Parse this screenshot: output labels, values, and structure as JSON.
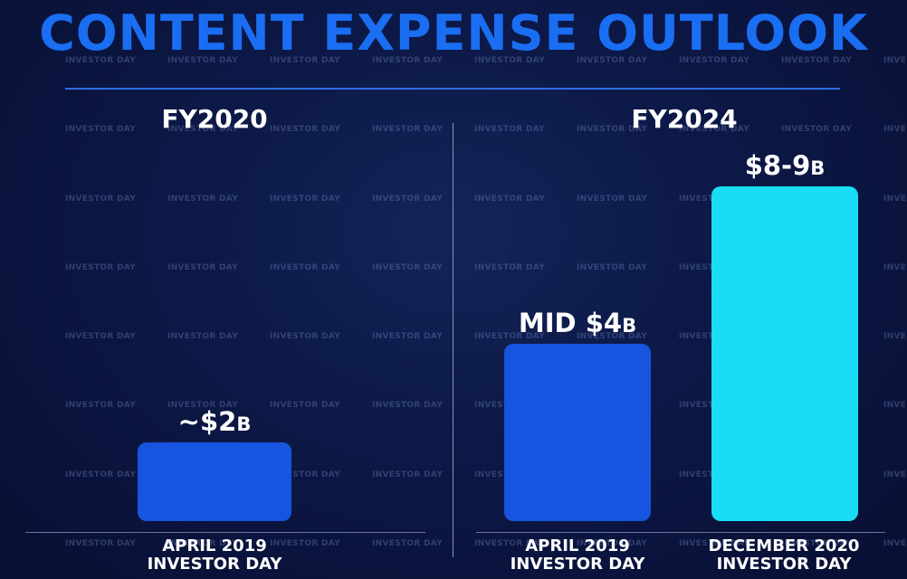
{
  "title": "CONTENT EXPENSE OUTLOOK",
  "watermark": "INVESTOR DAY",
  "colors": {
    "title": "#1a6ef2",
    "bar_blue": "#1755e0",
    "bar_cyan": "#19dcf5",
    "background": "#0c1846"
  },
  "chart_data": [
    {
      "type": "bar",
      "title": "FY2020",
      "categories": [
        [
          "APRIL 2019",
          "INVESTOR DAY"
        ]
      ],
      "values": [
        2
      ],
      "data_labels": [
        {
          "main": "~$2",
          "unit": "B"
        }
      ],
      "unit": "B",
      "ylim": [
        0,
        10
      ]
    },
    {
      "type": "bar",
      "title": "FY2024",
      "categories": [
        [
          "APRIL 2019",
          "INVESTOR DAY"
        ],
        [
          "DECEMBER 2020",
          "INVESTOR DAY"
        ]
      ],
      "values": [
        4.5,
        8.5
      ],
      "data_labels": [
        {
          "main": "MID $4",
          "unit": "B"
        },
        {
          "main": "$8-9",
          "unit": "B"
        }
      ],
      "unit": "B",
      "ylim": [
        0,
        10
      ]
    }
  ]
}
